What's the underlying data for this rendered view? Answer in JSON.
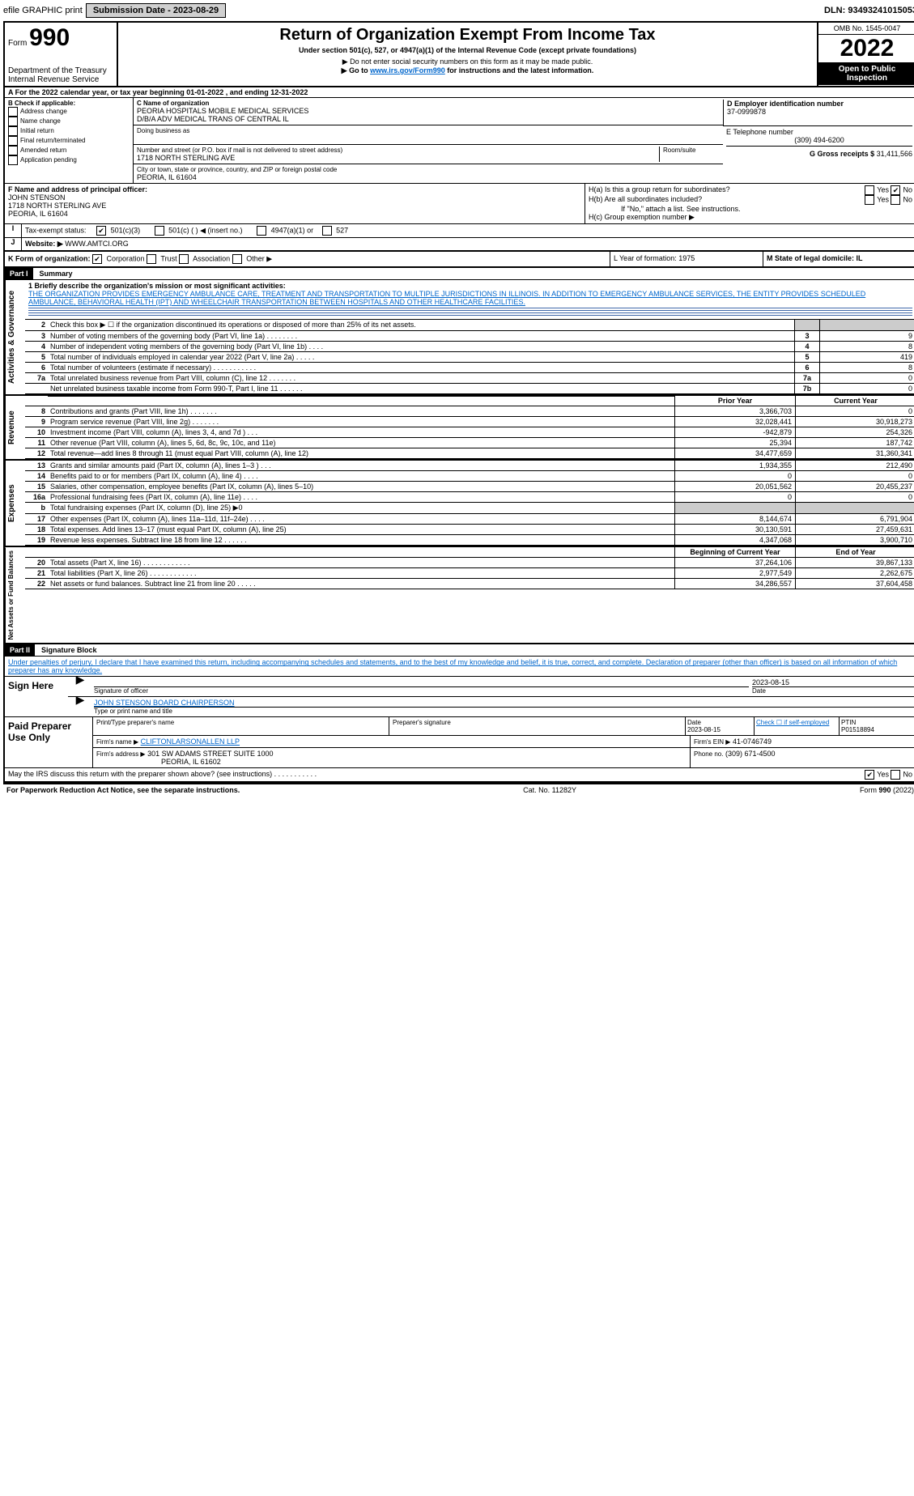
{
  "topbar": {
    "efile": "efile GRAPHIC print",
    "submission": "Submission Date - 2023-08-29",
    "dln": "DLN: 93493241015053"
  },
  "header": {
    "form_label": "Form",
    "form_no": "990",
    "dept": "Department of the Treasury",
    "irs": "Internal Revenue Service",
    "title": "Return of Organization Exempt From Income Tax",
    "subtitle": "Under section 501(c), 527, or 4947(a)(1) of the Internal Revenue Code (except private foundations)",
    "note1": "▶ Do not enter social security numbers on this form as it may be made public.",
    "note2": "▶ Go to ",
    "note2_link": "www.irs.gov/Form990",
    "note2_after": " for instructions and the latest information.",
    "omb": "OMB No. 1545-0047",
    "year": "2022",
    "open": "Open to Public Inspection"
  },
  "A": {
    "text": "For the 2022 calendar year, or tax year beginning 01-01-2022    , and ending 12-31-2022"
  },
  "B": {
    "label": "B Check if applicable:",
    "opts": [
      "Address change",
      "Name change",
      "Initial return",
      "Final return/terminated",
      "Amended return",
      "Application pending"
    ]
  },
  "C": {
    "name_label": "C Name of organization",
    "name": "PEORIA HOSPITALS MOBILE MEDICAL SERVICES",
    "dba": "D/B/A ADV MEDICAL TRANS OF CENTRAL IL",
    "doing": "Doing business as",
    "street_label": "Number and street (or P.O. box if mail is not delivered to street address)",
    "room": "Room/suite",
    "street": "1718 NORTH STERLING AVE",
    "city_label": "City or town, state or province, country, and ZIP or foreign postal code",
    "city": "PEORIA, IL  61604"
  },
  "D": {
    "label": "D Employer identification number",
    "value": "37-0999878"
  },
  "E": {
    "label": "E Telephone number",
    "value": "(309) 494-6200"
  },
  "G": {
    "label": "G Gross receipts $",
    "value": "31,411,566"
  },
  "F": {
    "label": "F  Name and address of principal officer:",
    "name": "JOHN STENSON",
    "addr1": "1718 NORTH STERLING AVE",
    "addr2": "PEORIA, IL  61604"
  },
  "H": {
    "a": "H(a)  Is this a group return for subordinates?",
    "a_yes": "Yes",
    "a_no": "No",
    "b": "H(b)  Are all subordinates included?",
    "b_note": "If \"No,\" attach a list. See instructions.",
    "c": "H(c)  Group exemption number ▶"
  },
  "I": {
    "label": "Tax-exempt status:",
    "o1": "501(c)(3)",
    "o2": "501(c) (  ) ◀ (insert no.)",
    "o3": "4947(a)(1) or",
    "o4": "527"
  },
  "J": {
    "label": "Website: ▶",
    "value": "WWW.AMTCI.ORG"
  },
  "K": {
    "label": "K Form of organization:",
    "corp": "Corporation",
    "trust": "Trust",
    "assoc": "Association",
    "other": "Other ▶"
  },
  "L": {
    "label": "L Year of formation: 1975"
  },
  "M": {
    "label": "M State of legal domicile: IL"
  },
  "part1": {
    "hdr": "Part I",
    "title": "Summary",
    "q1": "1 Briefly describe the organization's mission or most significant activities:",
    "mission": "THE ORGANIZATION PROVIDES EMERGENCY AMBULANCE CARE, TREATMENT AND TRANSPORTATION TO MULTIPLE JURISDICTIONS IN ILLINOIS. IN ADDITION TO EMERGENCY AMBULANCE SERVICES, THE ENTITY PROVIDES SCHEDULED AMBULANCE, BEHAVIORAL HEALTH (IPT) AND WHEELCHAIR TRANSPORTATION BETWEEN HOSPITALS AND OTHER HEALTHCARE FACILITIES.",
    "q2": "Check this box ▶ ☐ if the organization discontinued its operations or disposed of more than 25% of its net assets.",
    "lines_ag": [
      {
        "n": "3",
        "d": "Number of voting members of the governing body (Part VI, line 1a)   .    .    .    .    .    .    .    .",
        "bn": "3",
        "v": "9"
      },
      {
        "n": "4",
        "d": "Number of independent voting members of the governing body (Part VI, line 1b)    .    .    .    .",
        "bn": "4",
        "v": "8"
      },
      {
        "n": "5",
        "d": "Total number of individuals employed in calendar year 2022 (Part V, line 2a)    .    .    .    .    .",
        "bn": "5",
        "v": "419"
      },
      {
        "n": "6",
        "d": "Total number of volunteers (estimate if necessary)    .    .    .    .    .    .    .    .    .    .    .",
        "bn": "6",
        "v": "8"
      },
      {
        "n": "7a",
        "d": "Total unrelated business revenue from Part VIII, column (C), line 12    .    .    .    .    .    .    .",
        "bn": "7a",
        "v": "0"
      },
      {
        "n": "",
        "d": "Net unrelated business taxable income from Form 990-T, Part I, line 11    .    .    .    .    .    .",
        "bn": "7b",
        "v": "0"
      }
    ],
    "col_prior": "Prior Year",
    "col_curr": "Current Year",
    "rev": [
      {
        "n": "8",
        "d": "Contributions and grants (Part VIII, line 1h)    .    .    .    .    .    .    .",
        "p": "3,366,703",
        "c": "0"
      },
      {
        "n": "9",
        "d": "Program service revenue (Part VIII, line 2g)    .    .    .    .    .    .    .",
        "p": "32,028,441",
        "c": "30,918,273"
      },
      {
        "n": "10",
        "d": "Investment income (Part VIII, column (A), lines 3, 4, and 7d )    .    .    .",
        "p": "-942,879",
        "c": "254,326"
      },
      {
        "n": "11",
        "d": "Other revenue (Part VIII, column (A), lines 5, 6d, 8c, 9c, 10c, and 11e)",
        "p": "25,394",
        "c": "187,742"
      },
      {
        "n": "12",
        "d": "Total revenue—add lines 8 through 11 (must equal Part VIII, column (A), line 12)",
        "p": "34,477,659",
        "c": "31,360,341"
      }
    ],
    "exp": [
      {
        "n": "13",
        "d": "Grants and similar amounts paid (Part IX, column (A), lines 1–3 )   .    .   .",
        "p": "1,934,355",
        "c": "212,490"
      },
      {
        "n": "14",
        "d": "Benefits paid to or for members (Part IX, column (A), line 4)    .    .    .    .",
        "p": "0",
        "c": "0"
      },
      {
        "n": "15",
        "d": "Salaries, other compensation, employee benefits (Part IX, column (A), lines 5–10)",
        "p": "20,051,562",
        "c": "20,455,237"
      },
      {
        "n": "16a",
        "d": "Professional fundraising fees (Part IX, column (A), line 11e)    .    .    .    .",
        "p": "0",
        "c": "0"
      },
      {
        "n": "b",
        "d": "Total fundraising expenses (Part IX, column (D), line 25) ▶0",
        "p": "",
        "c": "",
        "gray": true
      },
      {
        "n": "17",
        "d": "Other expenses (Part IX, column (A), lines 11a–11d, 11f–24e)    .    .    .    .",
        "p": "8,144,674",
        "c": "6,791,904"
      },
      {
        "n": "18",
        "d": "Total expenses. Add lines 13–17 (must equal Part IX, column (A), line 25)",
        "p": "30,130,591",
        "c": "27,459,631"
      },
      {
        "n": "19",
        "d": "Revenue less expenses. Subtract line 18 from line 12    .    .    .    .    .    .",
        "p": "4,347,068",
        "c": "3,900,710"
      }
    ],
    "col_beg": "Beginning of Current Year",
    "col_end": "End of Year",
    "net": [
      {
        "n": "20",
        "d": "Total assets (Part X, line 16)    .    .    .    .    .    .    .    .    .    .    .    .",
        "p": "37,264,106",
        "c": "39,867,133"
      },
      {
        "n": "21",
        "d": "Total liabilities (Part X, line 26)    .    .    .    .    .    .    .    .    .    .    .    .",
        "p": "2,977,549",
        "c": "2,262,675"
      },
      {
        "n": "22",
        "d": "Net assets or fund balances. Subtract line 21 from line 20    .    .    .    .    .",
        "p": "34,286,557",
        "c": "37,604,458"
      }
    ],
    "ag_label": "Activities & Governance",
    "rev_label": "Revenue",
    "exp_label": "Expenses",
    "net_label": "Net Assets or Fund Balances"
  },
  "part2": {
    "hdr": "Part II",
    "title": "Signature Block",
    "decl": "Under penalties of perjury, I declare that I have examined this return, including accompanying schedules and statements, and to the best of my knowledge and belief, it is true, correct, and complete. Declaration of preparer (other than officer) is based on all information of which preparer has any knowledge.",
    "sign_here": "Sign Here",
    "sig_officer": "Signature of officer",
    "sig_date": "Date",
    "date_val": "2023-08-15",
    "name_title": "JOHN STENSON  BOARD CHAIRPERSON",
    "type_name": "Type or print name and title",
    "paid": "Paid Preparer Use Only",
    "prep_name_l": "Print/Type preparer's name",
    "prep_sig_l": "Preparer's signature",
    "prep_date": "Date",
    "prep_date_v": "2023-08-15",
    "self": "Check ☐ if self-employed",
    "ptin_l": "PTIN",
    "ptin": "P01518894",
    "firm_name_l": "Firm's name    ▶",
    "firm_name": "CLIFTONLARSONALLEN LLP",
    "ein_l": "Firm's EIN ▶",
    "ein": "41-0746749",
    "firm_addr_l": "Firm's address ▶",
    "firm_addr1": "301 SW ADAMS STREET SUITE 1000",
    "firm_addr2": "PEORIA, IL  61602",
    "phone_l": "Phone no.",
    "phone": "(309) 671-4500",
    "discuss": "May the IRS discuss this return with the preparer shown above? (see instructions)    .    .    .    .    .    .    .    .    .    .    .",
    "yes": "Yes",
    "no": "No"
  },
  "footer": {
    "left": "For Paperwork Reduction Act Notice, see the separate instructions.",
    "mid": "Cat. No. 11282Y",
    "right": "Form 990 (2022)"
  }
}
